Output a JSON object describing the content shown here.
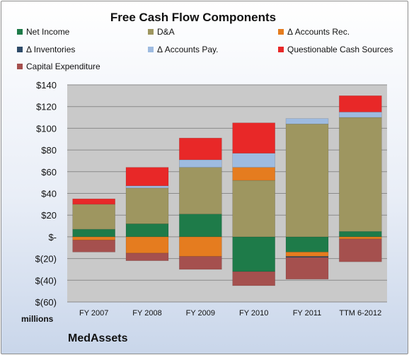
{
  "chart_data": {
    "type": "bar",
    "stacked": true,
    "title": "Free Cash Flow Components",
    "units_label": "millions",
    "footer": "MedAssets",
    "categories": [
      "FY 2007",
      "FY 2008",
      "FY 2009",
      "FY 2010",
      "FY 2011",
      "TTM 6-2012"
    ],
    "yticks": [
      "$140",
      "$120",
      "$100",
      "$80",
      "$60",
      "$40",
      "$20",
      "$-",
      "$(20)",
      "$(40)",
      "$(60)"
    ],
    "ylim": [
      -60,
      140
    ],
    "grid": true,
    "legend": "top",
    "series": [
      {
        "name": "Net Income",
        "color": "#1e7b49",
        "values": [
          7,
          12,
          21,
          -32,
          -14,
          5
        ]
      },
      {
        "name": "D&A",
        "color": "#9e9660",
        "values": [
          23,
          33,
          43,
          52,
          104,
          105
        ]
      },
      {
        "name": "Δ Accounts Rec.",
        "color": "#e57c1f",
        "values": [
          -3,
          -15,
          -18,
          12,
          -4,
          -2
        ]
      },
      {
        "name": "Δ Inventories",
        "color": "#2e4b69",
        "values": [
          0,
          0,
          0,
          0,
          -1,
          0
        ]
      },
      {
        "name": "Δ Accounts Pay.",
        "color": "#9ebbe0",
        "values": [
          0,
          2,
          7,
          13,
          5,
          5
        ]
      },
      {
        "name": "Questionable Cash Sources",
        "color": "#e82828",
        "values": [
          5,
          17,
          20,
          28,
          0,
          15
        ]
      },
      {
        "name": "Capital Expenditure",
        "color": "#a5504e",
        "values": [
          -11,
          -7,
          -12,
          -13,
          -20,
          -21
        ]
      }
    ]
  }
}
